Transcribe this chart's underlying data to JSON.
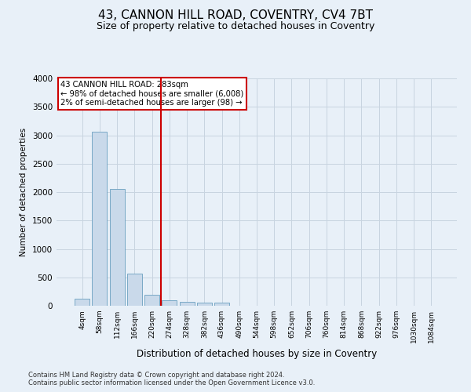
{
  "title": "43, CANNON HILL ROAD, COVENTRY, CV4 7BT",
  "subtitle": "Size of property relative to detached houses in Coventry",
  "xlabel": "Distribution of detached houses by size in Coventry",
  "ylabel": "Number of detached properties",
  "footnote1": "Contains HM Land Registry data © Crown copyright and database right 2024.",
  "footnote2": "Contains public sector information licensed under the Open Government Licence v3.0.",
  "bar_labels": [
    "4sqm",
    "58sqm",
    "112sqm",
    "166sqm",
    "220sqm",
    "274sqm",
    "328sqm",
    "382sqm",
    "436sqm",
    "490sqm",
    "544sqm",
    "598sqm",
    "652sqm",
    "706sqm",
    "760sqm",
    "814sqm",
    "868sqm",
    "922sqm",
    "976sqm",
    "1030sqm",
    "1084sqm"
  ],
  "bar_values": [
    130,
    3060,
    2060,
    570,
    200,
    95,
    75,
    55,
    50,
    0,
    0,
    0,
    0,
    0,
    0,
    0,
    0,
    0,
    0,
    0,
    0
  ],
  "bar_color": "#c9d9ea",
  "bar_edge_color": "#6a9fc0",
  "vline_color": "#cc0000",
  "annotation_text": "43 CANNON HILL ROAD: 283sqm\n← 98% of detached houses are smaller (6,008)\n2% of semi-detached houses are larger (98) →",
  "annotation_box_color": "white",
  "annotation_box_edge_color": "#cc0000",
  "ylim": [
    0,
    4000
  ],
  "yticks": [
    0,
    500,
    1000,
    1500,
    2000,
    2500,
    3000,
    3500,
    4000
  ],
  "grid_color": "#c8d4e0",
  "bg_color": "#e8f0f8",
  "title_fontsize": 11,
  "subtitle_fontsize": 9
}
